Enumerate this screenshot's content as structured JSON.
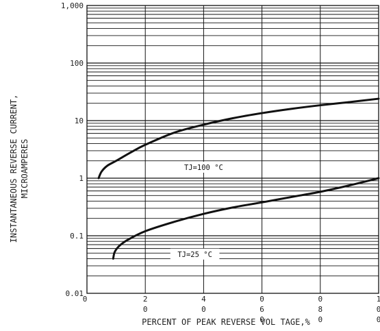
{
  "chart_data": {
    "type": "line",
    "title": "",
    "xlabel": "PERCENT OF PEAK REVERSE VOL TAGE,%",
    "ylabel_lines": [
      "INSTANTANEOUS REVERSE CURRENT,",
      "MICROAMPERES"
    ],
    "xlim": [
      0,
      100
    ],
    "ylim": [
      0.01,
      1000
    ],
    "yscale": "log",
    "grid": true,
    "x_tick_labels": [
      {
        "value": 0,
        "digits": [
          "0"
        ]
      },
      {
        "value": 20,
        "digits": [
          "2",
          "0"
        ]
      },
      {
        "value": 40,
        "digits": [
          "4",
          "0"
        ]
      },
      {
        "value": 60,
        "digits": [
          "0",
          "6",
          "0"
        ]
      },
      {
        "value": 80,
        "digits": [
          "0",
          "8",
          "0"
        ]
      },
      {
        "value": 100,
        "digits": [
          "1",
          "0",
          "0"
        ]
      }
    ],
    "y_tick_labels": [
      {
        "value": 1000,
        "label": "1,000"
      },
      {
        "value": 100,
        "label": "100"
      },
      {
        "value": 10,
        "label": "10"
      },
      {
        "value": 1,
        "label": "1"
      },
      {
        "value": 0.1,
        "label": "0.1"
      },
      {
        "value": 0.01,
        "label": "0.01"
      }
    ],
    "series": [
      {
        "name": "TJ=100 °C",
        "x": [
          4,
          5,
          7,
          10,
          15,
          20,
          30,
          40,
          50,
          60,
          70,
          80,
          90,
          100
        ],
        "y": [
          1.0,
          1.3,
          1.65,
          2.0,
          2.8,
          3.8,
          6.2,
          8.5,
          11.0,
          13.5,
          16.0,
          18.5,
          21.0,
          24.0
        ]
      },
      {
        "name": "TJ=25 °C",
        "x": [
          9,
          9.5,
          11,
          14,
          20,
          30,
          40,
          50,
          60,
          70,
          80,
          90,
          100
        ],
        "y": [
          0.04,
          0.052,
          0.066,
          0.085,
          0.12,
          0.175,
          0.24,
          0.31,
          0.38,
          0.47,
          0.58,
          0.75,
          1.0
        ]
      }
    ],
    "annotations": [
      {
        "series": 0,
        "text": "TJ=100 °C",
        "x": 40,
        "y": 1.55
      },
      {
        "series": 1,
        "text": "TJ=25 °C",
        "x": 37,
        "y": 0.048
      }
    ]
  }
}
